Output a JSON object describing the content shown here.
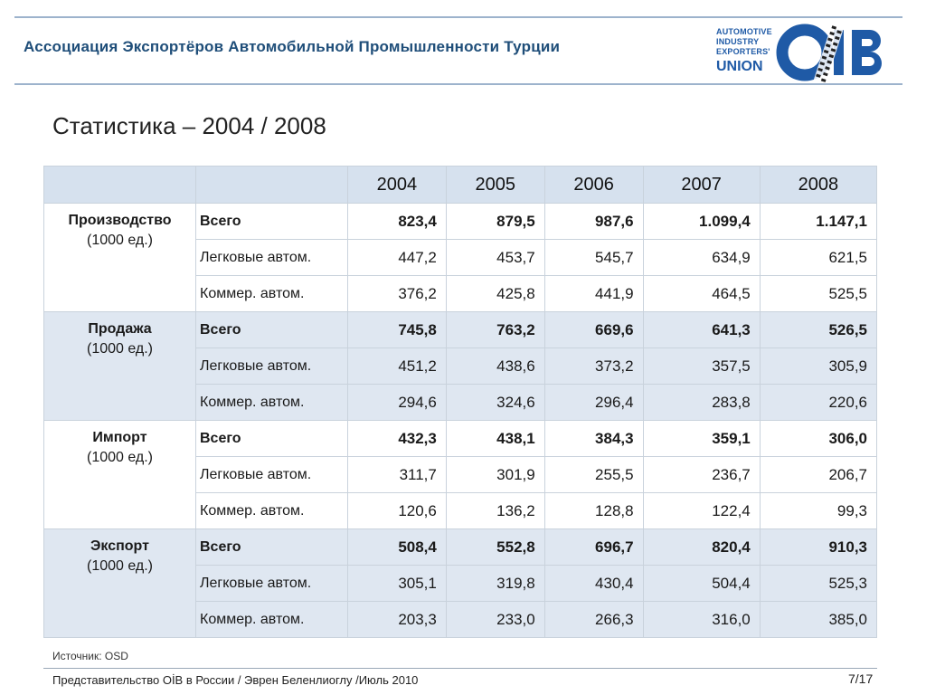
{
  "header": {
    "org_title": "Ассоциация Экспортёров Автомобильной Промышленности Турции",
    "logo": {
      "text_lines": [
        "AUTOMOTIVE",
        "INDUSTRY",
        "EXPORTERS'"
      ],
      "text_big": "UNION",
      "mark": "OİB",
      "brand_color": "#1f5aa6"
    }
  },
  "page_title": "Статистика – 2004 / 2008",
  "table": {
    "years": [
      "2004",
      "2005",
      "2006",
      "2007",
      "2008"
    ],
    "groups": [
      {
        "name": "Производство",
        "unit": "(1000 ед.)",
        "rows": [
          {
            "label": "Всего",
            "values": [
              "823,4",
              "879,5",
              "987,6",
              "1.099,4",
              "1.147,1"
            ]
          },
          {
            "label": "Легковые автом.",
            "values": [
              "447,2",
              "453,7",
              "545,7",
              "634,9",
              "621,5"
            ]
          },
          {
            "label": "Коммер. автом.",
            "values": [
              "376,2",
              "425,8",
              "441,9",
              "464,5",
              "525,5"
            ]
          }
        ]
      },
      {
        "name": "Продажа",
        "unit": "(1000 ед.)",
        "rows": [
          {
            "label": "Всего",
            "values": [
              "745,8",
              "763,2",
              "669,6",
              "641,3",
              "526,5"
            ]
          },
          {
            "label": "Легковые автом.",
            "values": [
              "451,2",
              "438,6",
              "373,2",
              "357,5",
              "305,9"
            ]
          },
          {
            "label": "Коммер. автом.",
            "values": [
              "294,6",
              "324,6",
              "296,4",
              "283,8",
              "220,6"
            ]
          }
        ]
      },
      {
        "name": "Импорт",
        "unit": "(1000 ед.)",
        "rows": [
          {
            "label": "Всего",
            "values": [
              "432,3",
              "438,1",
              "384,3",
              "359,1",
              "306,0"
            ]
          },
          {
            "label": "Легковые автом.",
            "values": [
              "311,7",
              "301,9",
              "255,5",
              "236,7",
              "206,7"
            ]
          },
          {
            "label": "Коммер. автом.",
            "values": [
              "120,6",
              "136,2",
              "128,8",
              "122,4",
              "99,3"
            ]
          }
        ]
      },
      {
        "name": "Экспорт",
        "unit": "(1000 ед.)",
        "rows": [
          {
            "label": "Всего",
            "values": [
              "508,4",
              "552,8",
              "696,7",
              "820,4",
              "910,3"
            ]
          },
          {
            "label": "Легковые автом.",
            "values": [
              "305,1",
              "319,8",
              "430,4",
              "504,4",
              "525,3"
            ]
          },
          {
            "label": "Коммер. автом.",
            "values": [
              "203,3",
              "233,0",
              "266,3",
              "316,0",
              "385,0"
            ]
          }
        ]
      }
    ]
  },
  "source": "Источник: OSD",
  "footer": {
    "text": "Представительство OİB в России / Эврен Беленлиоглу /Июль 2010",
    "page": "7/17"
  },
  "colors": {
    "accent": "#1f4e79",
    "header_fill": "#d6e1ee",
    "shade_fill": "#dfe7f1",
    "rule": "#9db3cc"
  }
}
